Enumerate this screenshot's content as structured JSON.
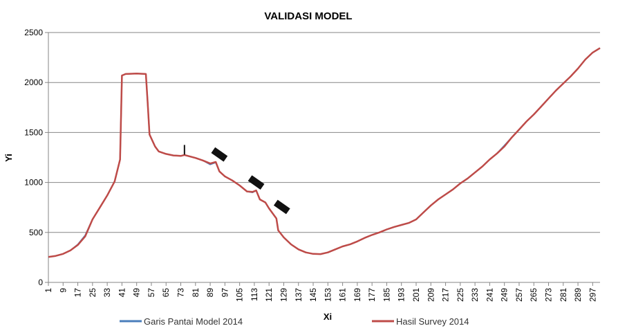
{
  "chart_data": {
    "type": "line",
    "title": "VALIDASI MODEL",
    "xlabel": "Xi",
    "ylabel": "Yi",
    "ylim": [
      0,
      2500
    ],
    "yticks": [
      0,
      500,
      1000,
      1500,
      2000,
      2500
    ],
    "xlim": [
      1,
      301
    ],
    "xticks": [
      1,
      9,
      17,
      25,
      33,
      41,
      49,
      57,
      65,
      73,
      81,
      89,
      97,
      105,
      113,
      121,
      129,
      137,
      145,
      153,
      161,
      169,
      177,
      185,
      193,
      201,
      209,
      217,
      225,
      233,
      241,
      249,
      257,
      265,
      273,
      281,
      289,
      297
    ],
    "grid": "horizontal",
    "legend_position": "bottom",
    "series": [
      {
        "name": "Garis Pantai Model 2014",
        "color": "#4a7ebb",
        "points": [
          [
            1,
            255
          ],
          [
            5,
            265
          ],
          [
            9,
            285
          ],
          [
            13,
            320
          ],
          [
            17,
            380
          ],
          [
            21,
            470
          ],
          [
            25,
            630
          ],
          [
            29,
            750
          ],
          [
            33,
            870
          ],
          [
            37,
            1010
          ],
          [
            40,
            1230
          ],
          [
            41,
            2070
          ],
          [
            43,
            2085
          ],
          [
            49,
            2090
          ],
          [
            54,
            2085
          ],
          [
            55,
            1800
          ],
          [
            56,
            1480
          ],
          [
            59,
            1360
          ],
          [
            61,
            1310
          ],
          [
            65,
            1285
          ],
          [
            69,
            1270
          ],
          [
            73,
            1265
          ],
          [
            75,
            1275
          ],
          [
            81,
            1245
          ],
          [
            85,
            1220
          ],
          [
            89,
            1180
          ],
          [
            92,
            1200
          ],
          [
            94,
            1110
          ],
          [
            97,
            1060
          ],
          [
            101,
            1020
          ],
          [
            105,
            970
          ],
          [
            109,
            910
          ],
          [
            112,
            900
          ],
          [
            114,
            920
          ],
          [
            116,
            830
          ],
          [
            119,
            800
          ],
          [
            121,
            740
          ],
          [
            123,
            690
          ],
          [
            125,
            640
          ],
          [
            126,
            520
          ],
          [
            129,
            450
          ],
          [
            133,
            380
          ],
          [
            137,
            330
          ],
          [
            141,
            300
          ],
          [
            145,
            285
          ],
          [
            149,
            283
          ],
          [
            153,
            300
          ],
          [
            157,
            330
          ],
          [
            161,
            360
          ],
          [
            165,
            380
          ],
          [
            169,
            410
          ],
          [
            173,
            445
          ],
          [
            177,
            475
          ],
          [
            181,
            500
          ],
          [
            185,
            530
          ],
          [
            189,
            555
          ],
          [
            193,
            575
          ],
          [
            197,
            595
          ],
          [
            201,
            630
          ],
          [
            205,
            700
          ],
          [
            209,
            770
          ],
          [
            213,
            830
          ],
          [
            217,
            880
          ],
          [
            221,
            930
          ],
          [
            225,
            990
          ],
          [
            229,
            1040
          ],
          [
            233,
            1100
          ],
          [
            237,
            1160
          ],
          [
            241,
            1230
          ],
          [
            245,
            1290
          ],
          [
            249,
            1370
          ],
          [
            253,
            1450
          ],
          [
            257,
            1530
          ],
          [
            261,
            1610
          ],
          [
            265,
            1680
          ],
          [
            269,
            1760
          ],
          [
            273,
            1840
          ],
          [
            277,
            1920
          ],
          [
            281,
            1990
          ],
          [
            285,
            2060
          ],
          [
            289,
            2140
          ],
          [
            293,
            2230
          ],
          [
            297,
            2300
          ],
          [
            301,
            2345
          ]
        ]
      },
      {
        "name": "Hasil Survey 2014",
        "color": "#be4b48",
        "points": [
          [
            1,
            255
          ],
          [
            5,
            265
          ],
          [
            9,
            285
          ],
          [
            13,
            320
          ],
          [
            17,
            375
          ],
          [
            21,
            460
          ],
          [
            25,
            630
          ],
          [
            29,
            750
          ],
          [
            33,
            870
          ],
          [
            37,
            1010
          ],
          [
            40,
            1230
          ],
          [
            41,
            2070
          ],
          [
            43,
            2085
          ],
          [
            49,
            2090
          ],
          [
            54,
            2085
          ],
          [
            55,
            1800
          ],
          [
            56,
            1480
          ],
          [
            59,
            1360
          ],
          [
            61,
            1310
          ],
          [
            65,
            1285
          ],
          [
            69,
            1270
          ],
          [
            73,
            1265
          ],
          [
            75,
            1275
          ],
          [
            81,
            1245
          ],
          [
            85,
            1220
          ],
          [
            89,
            1190
          ],
          [
            92,
            1205
          ],
          [
            94,
            1110
          ],
          [
            97,
            1060
          ],
          [
            101,
            1020
          ],
          [
            105,
            970
          ],
          [
            109,
            910
          ],
          [
            112,
            905
          ],
          [
            114,
            920
          ],
          [
            116,
            830
          ],
          [
            119,
            800
          ],
          [
            121,
            740
          ],
          [
            123,
            690
          ],
          [
            125,
            640
          ],
          [
            126,
            520
          ],
          [
            129,
            450
          ],
          [
            133,
            380
          ],
          [
            137,
            330
          ],
          [
            141,
            300
          ],
          [
            145,
            285
          ],
          [
            149,
            283
          ],
          [
            153,
            300
          ],
          [
            157,
            330
          ],
          [
            161,
            360
          ],
          [
            165,
            380
          ],
          [
            169,
            410
          ],
          [
            173,
            445
          ],
          [
            177,
            475
          ],
          [
            181,
            500
          ],
          [
            185,
            530
          ],
          [
            189,
            555
          ],
          [
            193,
            575
          ],
          [
            197,
            595
          ],
          [
            201,
            630
          ],
          [
            205,
            700
          ],
          [
            209,
            770
          ],
          [
            213,
            830
          ],
          [
            217,
            880
          ],
          [
            221,
            930
          ],
          [
            225,
            990
          ],
          [
            229,
            1040
          ],
          [
            233,
            1100
          ],
          [
            237,
            1160
          ],
          [
            241,
            1230
          ],
          [
            245,
            1290
          ],
          [
            249,
            1360
          ],
          [
            253,
            1450
          ],
          [
            257,
            1530
          ],
          [
            261,
            1610
          ],
          [
            265,
            1680
          ],
          [
            269,
            1760
          ],
          [
            273,
            1840
          ],
          [
            277,
            1920
          ],
          [
            281,
            1990
          ],
          [
            285,
            2060
          ],
          [
            289,
            2140
          ],
          [
            293,
            2230
          ],
          [
            297,
            2300
          ],
          [
            301,
            2345
          ]
        ]
      }
    ],
    "annotations": [
      {
        "type": "marker",
        "x": 75,
        "y": 1320
      },
      {
        "type": "marker",
        "x": 94,
        "y": 1280
      },
      {
        "type": "marker",
        "x": 114,
        "y": 1000
      },
      {
        "type": "marker",
        "x": 128,
        "y": 755
      }
    ]
  }
}
